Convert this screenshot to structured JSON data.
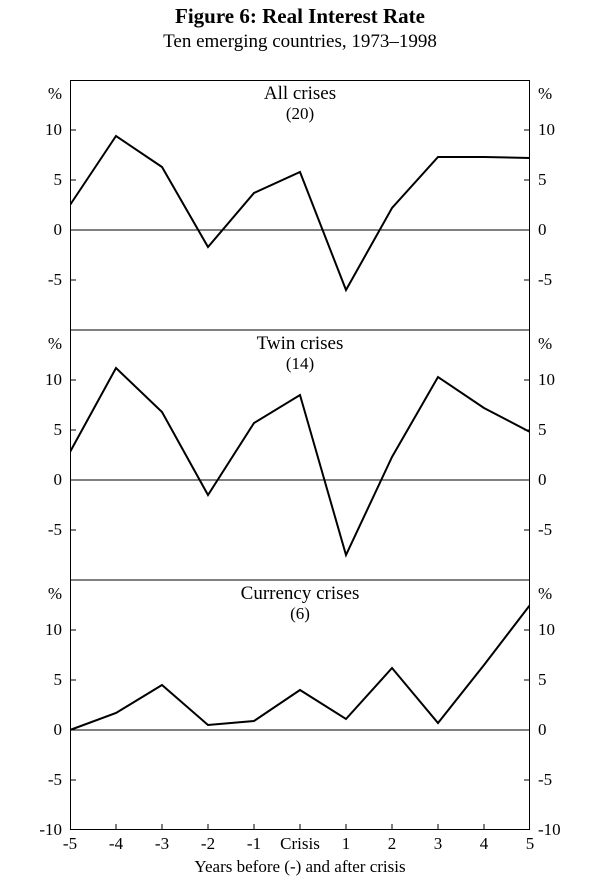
{
  "figure": {
    "title": "Figure 6: Real Interest Rate",
    "subtitle": "Ten emerging countries, 1973–1998",
    "xlabel": "Years before (-) and after crisis",
    "title_fontsize": 21,
    "subtitle_fontsize": 19,
    "label_fontsize": 17,
    "background_color": "#ffffff",
    "line_color": "#000000",
    "line_width": 2,
    "font_family": "Times New Roman",
    "x_categories": [
      "-5",
      "-4",
      "-3",
      "-2",
      "-1",
      "Crisis",
      "1",
      "2",
      "3",
      "4",
      "5"
    ],
    "panels": [
      {
        "type": "line",
        "title": "All crises",
        "count": "(20)",
        "ylim": [
          -10,
          15
        ],
        "yticks": [
          -5,
          0,
          5,
          10
        ],
        "percent_symbol": "%",
        "values": [
          2.5,
          9.4,
          6.3,
          -1.7,
          3.7,
          5.8,
          -6.0,
          2.2,
          7.3,
          7.3,
          7.2
        ],
        "show_top_border": true
      },
      {
        "type": "line",
        "title": "Twin crises",
        "count": "(14)",
        "ylim": [
          -10,
          15
        ],
        "yticks": [
          -5,
          0,
          5,
          10
        ],
        "percent_symbol": "%",
        "values": [
          2.8,
          11.2,
          6.8,
          -1.5,
          5.7,
          8.5,
          -7.5,
          2.3,
          10.3,
          7.2,
          4.8
        ],
        "show_top_border": true
      },
      {
        "type": "line",
        "title": "Currency crises",
        "count": "(6)",
        "ylim": [
          -10,
          15
        ],
        "yticks": [
          -10,
          -5,
          0,
          5,
          10
        ],
        "percent_symbol": "%",
        "values": [
          0.0,
          1.7,
          4.5,
          0.5,
          0.9,
          4.0,
          1.1,
          6.2,
          0.7,
          6.5,
          12.5
        ],
        "show_top_border": true
      }
    ]
  }
}
